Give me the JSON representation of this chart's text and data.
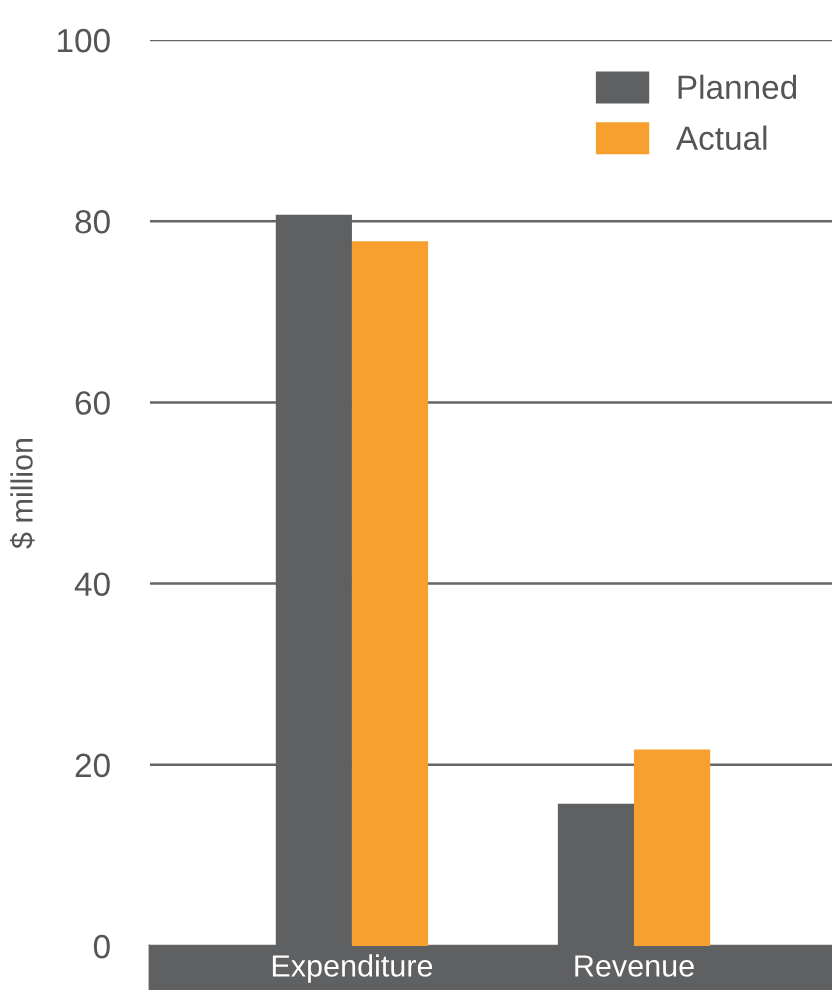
{
  "chart_data": {
    "type": "bar",
    "ylabel": "$ million",
    "categories": [
      "Expenditure",
      "Revenue"
    ],
    "series": [
      {
        "name": "Planned",
        "color": "#5f6062",
        "values": [
          80.7,
          15.7
        ]
      },
      {
        "name": "Actual",
        "color": "#f7a02f",
        "values": [
          77.8,
          21.7
        ]
      }
    ],
    "ylim": [
      0,
      100
    ],
    "yticks": [
      0,
      20,
      40,
      60,
      80,
      100
    ],
    "grid": "y",
    "legend": "top right"
  }
}
